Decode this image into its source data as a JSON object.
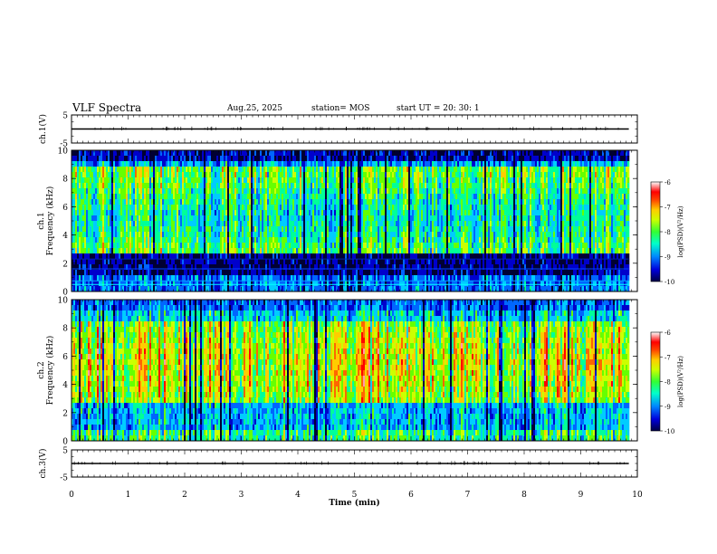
{
  "header": {
    "title": "VLF Spectra",
    "date": "Aug.25, 2025",
    "station": "station= MOS",
    "start": "start  UT  =   20: 30: 1"
  },
  "colors": {
    "spectrum_scale": [
      "#000033",
      "#0000cc",
      "#0066ff",
      "#00ccff",
      "#00ff99",
      "#66ff00",
      "#ccff00",
      "#ffcc00",
      "#ff6600",
      "#ff0000",
      "#ff99aa",
      "#ffffff"
    ],
    "trace": "#000000"
  },
  "chart_data": [
    {
      "id": "ch1-waveform",
      "type": "line",
      "ylabel": "ch.1(V)",
      "ylim": [
        -5,
        5
      ],
      "yticks": [
        "5",
        "-5"
      ],
      "series": [
        {
          "x": [
            0,
            9.85
          ],
          "y": [
            0,
            0
          ]
        }
      ]
    },
    {
      "id": "ch1-spectrogram",
      "type": "heatmap",
      "ylabel_line1": "ch.1",
      "ylabel_line2": "Frequency (kHz)",
      "ylim": [
        0,
        10
      ],
      "yticks": [
        "0",
        "2",
        "4",
        "6",
        "8",
        "10"
      ],
      "xlim": [
        0,
        10
      ],
      "data_end_min": 9.85,
      "colorbar": {
        "label": "log(PSD)(V²/Hz)",
        "range": [
          -10,
          -6
        ],
        "ticks": [
          "-6",
          "-7",
          "-8",
          "-9",
          "-10"
        ]
      }
    },
    {
      "id": "ch2-spectrogram",
      "type": "heatmap",
      "ylabel_line1": "ch.2",
      "ylabel_line2": "Frequency (kHz)",
      "ylim": [
        0,
        10
      ],
      "yticks": [
        "0",
        "2",
        "4",
        "6",
        "8",
        "10"
      ],
      "xlim": [
        0,
        10
      ],
      "data_end_min": 9.85,
      "colorbar": {
        "label": "log(PSD)(V²/Hz)",
        "range": [
          -10,
          -6
        ],
        "ticks": [
          "-6",
          "-7",
          "-8",
          "-9",
          "-10"
        ]
      }
    },
    {
      "id": "ch3-waveform",
      "type": "line",
      "ylabel": "ch.3(V)",
      "ylim": [
        -5,
        5
      ],
      "yticks": [
        "5",
        "-5"
      ],
      "series": [
        {
          "x": [
            0,
            9.85
          ],
          "y": [
            0,
            0
          ]
        }
      ]
    }
  ],
  "xaxis": {
    "label": "Time  (min)",
    "range": [
      0,
      10
    ],
    "ticks": [
      "0",
      "1",
      "2",
      "3",
      "4",
      "5",
      "6",
      "7",
      "8",
      "9",
      "10"
    ]
  }
}
